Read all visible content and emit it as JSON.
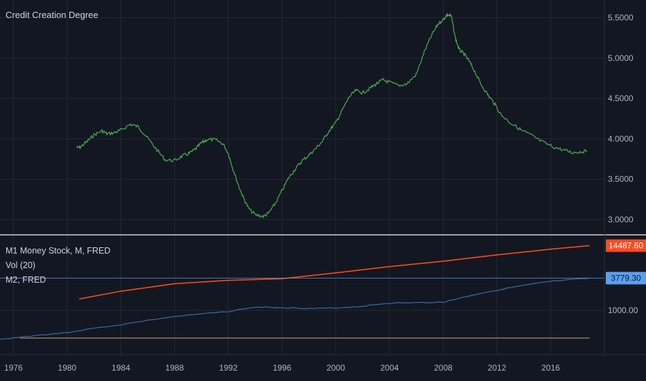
{
  "title": "Credit Creation Degree",
  "legend": {
    "m1": "M1 Money Stock, M, FRED",
    "vol": "Vol (20)",
    "m2": "M2, FRED"
  },
  "colors": {
    "background": "#131722",
    "grid": "#242832",
    "text": "#b2b5be",
    "ratio": "#4caf50",
    "m2": "#fc4a1a",
    "m1": "#3a6ea8",
    "vol": "#8d7a57",
    "m2_label_bg": "#ff4a1f",
    "m1_label_bg": "#5b9ff0"
  },
  "chart_data": [
    {
      "type": "line",
      "name": "upper",
      "title": "Credit Creation Degree",
      "xlim": [
        1975,
        2020
      ],
      "ylim": [
        2.82,
        5.72
      ],
      "grid": true,
      "x_ticks": [
        "1976",
        "1980",
        "1984",
        "1988",
        "1992",
        "1996",
        "2000",
        "2004",
        "2008",
        "2012",
        "2016"
      ],
      "y_ticks": [
        "5.5000",
        "5.0000",
        "4.5000",
        "4.0000",
        "3.5000",
        "3.0000"
      ],
      "series": [
        {
          "x": [
            1980.7,
            1981.0,
            1981.5,
            1982.0,
            1982.6,
            1983.0,
            1983.6,
            1984.0,
            1984.7,
            1985.3,
            1985.9,
            1986.6,
            1987.3,
            1988.0,
            1988.6,
            1989.1,
            1989.6,
            1990.0,
            1990.4,
            1991.0,
            1991.6,
            1992.0,
            1992.3,
            1992.7,
            1993.1,
            1993.5,
            1994.0,
            1994.6,
            1995.0,
            1995.5,
            1996.0,
            1996.5,
            1997.0,
            1997.5,
            1998.0,
            1998.5,
            1999.0,
            1999.5,
            2000.0,
            2000.5,
            2001.0,
            2001.5,
            2002.0,
            2002.5,
            2003.0,
            2003.5,
            2004.0,
            2004.7,
            2005.3,
            2006.0,
            2006.6,
            2007.1,
            2007.6,
            2008.0,
            2008.3,
            2008.6,
            2008.9,
            2009.2,
            2009.5,
            2009.9,
            2010.3,
            2010.8,
            2011.3,
            2011.8,
            2012.3,
            2013.0,
            2013.8,
            2014.6,
            2015.4,
            2016.2,
            2017.0,
            2017.6,
            2018.2,
            2018.7
          ],
          "values": [
            3.89,
            3.9,
            3.97,
            4.05,
            4.1,
            4.06,
            4.08,
            4.11,
            4.18,
            4.15,
            4.03,
            3.88,
            3.74,
            3.73,
            3.79,
            3.82,
            3.88,
            3.95,
            3.99,
            3.99,
            3.94,
            3.82,
            3.65,
            3.45,
            3.28,
            3.14,
            3.06,
            3.04,
            3.08,
            3.2,
            3.36,
            3.52,
            3.63,
            3.73,
            3.8,
            3.88,
            3.97,
            4.1,
            4.2,
            4.36,
            4.52,
            4.6,
            4.57,
            4.62,
            4.68,
            4.73,
            4.7,
            4.66,
            4.68,
            4.8,
            5.08,
            5.27,
            5.42,
            5.48,
            5.54,
            5.52,
            5.25,
            5.1,
            5.06,
            4.97,
            4.85,
            4.68,
            4.55,
            4.44,
            4.3,
            4.2,
            4.11,
            4.04,
            3.96,
            3.9,
            3.86,
            3.83,
            3.84,
            3.85
          ]
        }
      ]
    },
    {
      "type": "line",
      "name": "lower",
      "xlim": [
        1975,
        2020
      ],
      "y_ticks": [
        "1000.00"
      ],
      "grid": true,
      "series": [
        {
          "name": "M2, FRED",
          "x": [
            1980.9,
            1984.0,
            1988.0,
            1992.0,
            1996.0,
            2000.0,
            2004.0,
            2008.0,
            2012.0,
            2016.0,
            2018.9
          ],
          "values": [
            1600,
            2200,
            3000,
            3450,
            3700,
            4700,
            6100,
            7600,
            9900,
            12500,
            14487.6
          ]
        },
        {
          "name": "M1 Money Stock, M, FRED",
          "x": [
            1975.0,
            1978.0,
            1980.0,
            1984.0,
            1988.0,
            1992.0,
            1994.0,
            1996.0,
            1998.0,
            2000.0,
            2002.0,
            2004.0,
            2006.0,
            2008.0,
            2009.0,
            2012.0,
            2014.0,
            2016.0,
            2018.9
          ],
          "values": [
            300,
            360,
            400,
            550,
            770,
            950,
            1140,
            1120,
            1080,
            1100,
            1180,
            1350,
            1370,
            1400,
            1600,
            2300,
            2800,
            3300,
            3779.3
          ]
        },
        {
          "name": "Vol (20)",
          "x": [
            1976.5,
            2018.9
          ],
          "values": [
            1,
            1
          ]
        }
      ],
      "last_values": {
        "m2": "14487.60",
        "m1": "3779.30"
      }
    }
  ]
}
